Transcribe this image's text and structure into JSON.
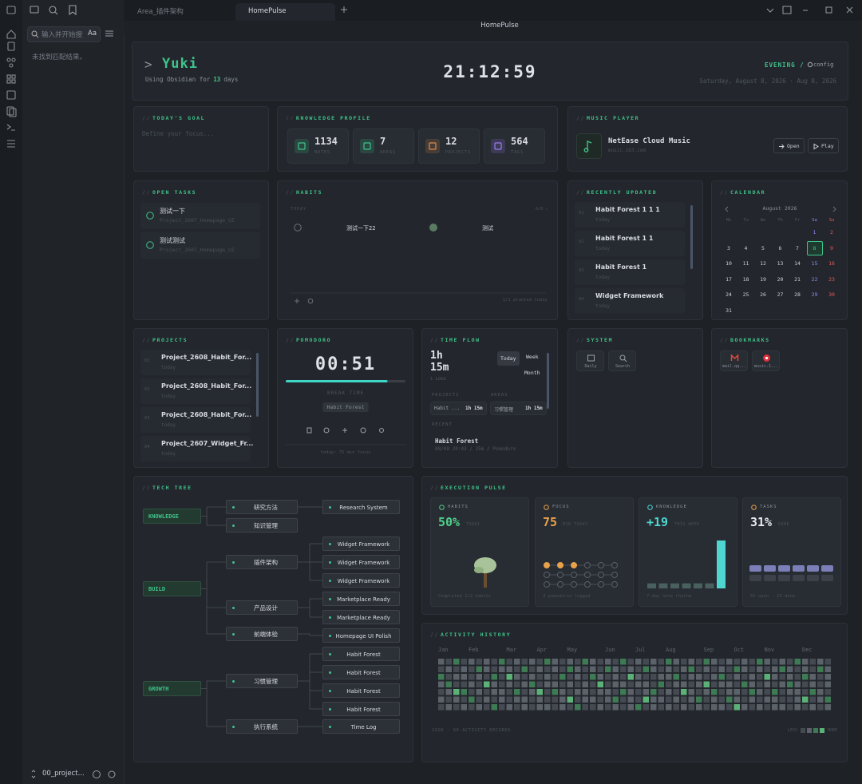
{
  "app": {
    "tabs": [
      "Area_插件架构",
      "HomePulse"
    ],
    "view_title": "HomePulse",
    "search_placeholder": "输入并开始搜索",
    "match_case": "Aa",
    "no_results": "未找到匹配结果。",
    "vault": "00_project..."
  },
  "panel_prefix": "//",
  "header": {
    "prompt": ">",
    "name": "Yuki",
    "usage_pre": "Using Obsidian for",
    "usage_days": "13",
    "usage_post": "days",
    "clock": "21:12:59",
    "period": "EVENING /",
    "config": "config",
    "date": "Saturday, August 8, 2026 · Aug 8, 2026"
  },
  "goal": {
    "title": "TODAY'S GOAL",
    "placeholder": "Define your focus..."
  },
  "knowledge": {
    "title": "KNOWLEDGE PROFILE",
    "stats": [
      {
        "value": "1134",
        "label": "NOTES"
      },
      {
        "value": "7",
        "label": "AREAS"
      },
      {
        "value": "12",
        "label": "PROJECTS"
      },
      {
        "value": "564",
        "label": "TAGS"
      }
    ]
  },
  "music": {
    "title": "MUSIC PLAYER",
    "name": "NetEase Cloud Music",
    "url": "music.163.com",
    "buttons": [
      "Open",
      "Play"
    ]
  },
  "tasks": {
    "title": "OPEN TASKS",
    "items": [
      {
        "text": "测试一下",
        "project": "Project_2607_Homepage_UI"
      },
      {
        "text": "测试测试",
        "project": "Project_2607_Homepage_UI"
      }
    ]
  },
  "habits": {
    "title": "HABITS",
    "today": "TODAY",
    "count": "6/8 ›",
    "items": [
      "测试一下22",
      "测试"
    ],
    "done": [
      false,
      true
    ],
    "footer": "1/1 planted today"
  },
  "recent": {
    "title": "RECENTLY UPDATED",
    "items": [
      {
        "index": "01",
        "name": "Habit Forest 1 1 1",
        "when": "today"
      },
      {
        "index": "02",
        "name": "Habit Forest 1 1",
        "when": "today"
      },
      {
        "index": "03",
        "name": "Habit Forest 1",
        "when": "today"
      },
      {
        "index": "04",
        "name": "Widget Framework",
        "when": "today"
      }
    ]
  },
  "calendar": {
    "title": "CALENDAR",
    "month": "August 2026",
    "weekdays": [
      "Mo",
      "Tu",
      "We",
      "Th",
      "Fr",
      "Sa",
      "Su"
    ],
    "weeks": [
      [
        1,
        2
      ],
      [
        3,
        4,
        5,
        6,
        7,
        8,
        9
      ],
      [
        10,
        11,
        12,
        13,
        14,
        15,
        16
      ],
      [
        17,
        18,
        19,
        20,
        21,
        22,
        23
      ],
      [
        24,
        25,
        26,
        27,
        28,
        29,
        30
      ],
      [
        31
      ]
    ],
    "today": 8
  },
  "projects": {
    "title": "PROJECTS",
    "items": [
      {
        "index": "01",
        "name": "Project_2608_Habit_For...",
        "when": "today"
      },
      {
        "index": "02",
        "name": "Project_2608_Habit_For...",
        "when": "today"
      },
      {
        "index": "03",
        "name": "Project_2608_Habit_For...",
        "when": "today"
      },
      {
        "index": "04",
        "name": "Project_2607_Widget_Fr...",
        "when": "today"
      }
    ]
  },
  "pomodoro": {
    "title": "POMODORO",
    "time": "00:51",
    "progress": 0.85,
    "phase": "BREAK TIME",
    "task": "Habit Forest",
    "footer": "today: 75 min focus"
  },
  "timeflow": {
    "title": "TIME FLOW",
    "total": "1h 15m",
    "logs": "1 LOGS",
    "tabs": [
      "Today",
      "Week",
      "Month"
    ],
    "projects_label": "PROJECTS",
    "areas_label": "AREAS",
    "project": {
      "name": "Habit ...",
      "time": "1h 15m"
    },
    "area": {
      "name": "习惯管理",
      "time": "1h 15m"
    },
    "recent_label": "RECENT",
    "recent": {
      "name": "Habit Forest",
      "meta": "08/08 20:43 / 25m / Pomodoro"
    }
  },
  "system": {
    "title": "SYSTEM",
    "buttons": [
      "Daily",
      "Search"
    ]
  },
  "bookmarks": {
    "title": "BOOKMARKS",
    "items": [
      "mail.qq...",
      "music.1..."
    ]
  },
  "tech_tree": {
    "title": "TECH TREE",
    "branches": [
      {
        "label": "KNOWLEDGE",
        "children": [
          {
            "label": "研究方法",
            "leaves": [
              "Research System"
            ]
          },
          {
            "label": "知识管理",
            "leaves": []
          }
        ]
      },
      {
        "label": "BUILD",
        "children": [
          {
            "label": "插件架构",
            "leaves": [
              "Widget Framework",
              "Widget Framework",
              "Widget Framework"
            ]
          },
          {
            "label": "产品设计",
            "leaves": [
              "Marketplace Ready",
              "Marketplace Ready"
            ]
          },
          {
            "label": "前端体验",
            "leaves": [
              "Homepage UI Polish"
            ]
          }
        ]
      },
      {
        "label": "GROWTH",
        "children": [
          {
            "label": "习惯管理",
            "leaves": [
              "Habit Forest",
              "Habit Forest",
              "Habit Forest",
              "Habit Forest"
            ]
          },
          {
            "label": "执行系统",
            "leaves": [
              "Time Log"
            ]
          }
        ]
      }
    ]
  },
  "pulse": {
    "title": "EXECUTION PULSE",
    "cards": [
      {
        "label": "HABITS",
        "value": "50%",
        "unit": "TODAY",
        "note": "Completed 1/2 habits"
      },
      {
        "label": "FOCUS",
        "value": "75",
        "unit": "MIN TODAY",
        "note": "3 pomodoros logged",
        "dots": [
          1,
          1,
          1,
          0,
          0,
          0,
          0,
          0,
          0,
          0,
          0,
          0,
          0,
          0,
          0,
          0,
          0,
          0
        ]
      },
      {
        "label": "KNOWLEDGE",
        "value": "+19",
        "unit": "THIS WEEK",
        "note": "7-day note rhythm",
        "bars": [
          2,
          2,
          2,
          2,
          2,
          2,
          19
        ]
      },
      {
        "label": "TASKS",
        "value": "31%",
        "unit": "DONE",
        "note": "51 open · 23 done",
        "blocks": [
          1,
          1,
          1,
          1,
          1,
          1,
          0,
          0,
          0,
          0,
          0,
          0
        ]
      }
    ]
  },
  "activity": {
    "title": "ACTIVITY HISTORY",
    "months": [
      "Jan",
      "Feb",
      "Mar",
      "Apr",
      "May",
      "Jun",
      "Jul",
      "Aug",
      "Sep",
      "Oct",
      "Nov",
      "Dec"
    ],
    "levels": [
      [
        1,
        0,
        2,
        1,
        0,
        1,
        0
      ],
      [
        0,
        1,
        0,
        2,
        1,
        0,
        1
      ],
      [
        2,
        0,
        1,
        0,
        3,
        1,
        0
      ],
      [
        0,
        1,
        1,
        0,
        2,
        0,
        1
      ],
      [
        1,
        0,
        0,
        1,
        0,
        2,
        0
      ],
      [
        0,
        2,
        1,
        0,
        1,
        0,
        1
      ],
      [
        1,
        1,
        0,
        3,
        0,
        1,
        0
      ],
      [
        0,
        0,
        2,
        1,
        1,
        0,
        2
      ],
      [
        2,
        1,
        0,
        0,
        1,
        1,
        0
      ],
      [
        0,
        1,
        3,
        1,
        0,
        0,
        1
      ],
      [
        1,
        0,
        1,
        0,
        2,
        1,
        0
      ],
      [
        0,
        2,
        0,
        1,
        0,
        1,
        1
      ],
      [
        1,
        0,
        1,
        2,
        1,
        0,
        0
      ],
      [
        0,
        1,
        0,
        0,
        3,
        1,
        1
      ],
      [
        2,
        0,
        1,
        1,
        0,
        0,
        1
      ],
      [
        1,
        1,
        0,
        1,
        2,
        0,
        0
      ],
      [
        0,
        0,
        2,
        0,
        1,
        1,
        1
      ],
      [
        1,
        2,
        0,
        1,
        0,
        3,
        0
      ],
      [
        0,
        1,
        1,
        0,
        1,
        0,
        2
      ],
      [
        2,
        0,
        0,
        1,
        1,
        1,
        0
      ],
      [
        1,
        1,
        2,
        0,
        0,
        1,
        0
      ],
      [
        0,
        0,
        1,
        3,
        1,
        0,
        1
      ],
      [
        1,
        2,
        0,
        0,
        1,
        1,
        0
      ],
      [
        0,
        1,
        1,
        1,
        0,
        2,
        1
      ],
      [
        2,
        0,
        0,
        1,
        2,
        0,
        0
      ],
      [
        0,
        1,
        3,
        0,
        1,
        1,
        1
      ],
      [
        1,
        0,
        1,
        1,
        0,
        0,
        2
      ],
      [
        0,
        2,
        0,
        1,
        1,
        3,
        0
      ],
      [
        1,
        1,
        0,
        0,
        2,
        1,
        1
      ],
      [
        0,
        0,
        1,
        2,
        0,
        1,
        0
      ],
      [
        2,
        1,
        1,
        0,
        1,
        0,
        1
      ],
      [
        1,
        0,
        2,
        1,
        0,
        1,
        0
      ],
      [
        0,
        1,
        0,
        1,
        3,
        0,
        1
      ],
      [
        1,
        2,
        1,
        0,
        1,
        1,
        0
      ],
      [
        0,
        0,
        1,
        1,
        0,
        2,
        1
      ],
      [
        2,
        1,
        0,
        3,
        1,
        0,
        0
      ],
      [
        1,
        0,
        1,
        0,
        2,
        1,
        1
      ],
      [
        0,
        1,
        2,
        1,
        0,
        0,
        1
      ],
      [
        1,
        0,
        0,
        1,
        1,
        2,
        0
      ],
      [
        0,
        2,
        1,
        0,
        1,
        1,
        3
      ],
      [
        1,
        1,
        0,
        2,
        0,
        0,
        1
      ],
      [
        0,
        0,
        1,
        1,
        2,
        1,
        0
      ],
      [
        2,
        1,
        0,
        0,
        1,
        0,
        1
      ],
      [
        1,
        0,
        3,
        1,
        0,
        1,
        0
      ],
      [
        0,
        1,
        1,
        0,
        2,
        1,
        1
      ],
      [
        1,
        2,
        0,
        1,
        0,
        0,
        1
      ],
      [
        0,
        1,
        1,
        2,
        1,
        0,
        0
      ],
      [
        2,
        0,
        0,
        1,
        1,
        1,
        1
      ],
      [
        1,
        1,
        2,
        0,
        0,
        3,
        0
      ],
      [
        0,
        0,
        1,
        1,
        2,
        0,
        1
      ],
      [
        1,
        2,
        0,
        0,
        1,
        1,
        0
      ],
      [
        0,
        1,
        1,
        1,
        0,
        2,
        1
      ]
    ],
    "footer": "2026 · 90 ACTIVITY RECORDS",
    "less": "LESS",
    "more": "MORE"
  }
}
